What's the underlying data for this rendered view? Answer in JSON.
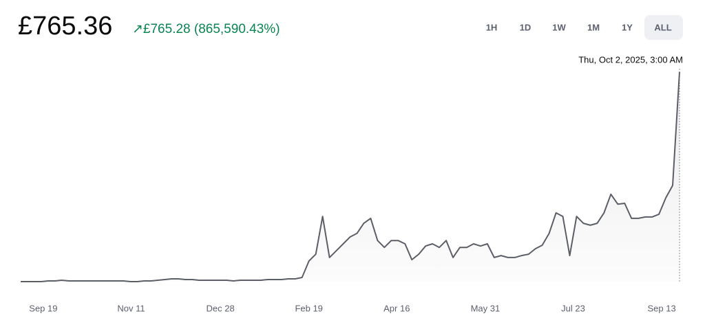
{
  "header": {
    "price": "£765.36",
    "change": "↗£765.28 (865,590.43%)",
    "ranges": [
      "1H",
      "1D",
      "1W",
      "1M",
      "1Y",
      "ALL"
    ],
    "selected_range": "ALL"
  },
  "chart_data": {
    "type": "line",
    "color": "#5b5e66",
    "hover_label": "Thu, Oct 2, 2025, 3:00 AM",
    "xlim": [
      0,
      96
    ],
    "ylim": [
      0,
      800
    ],
    "xticks": [
      {
        "value": 3.3,
        "label": "Sep 19"
      },
      {
        "value": 16.1,
        "label": "Nov 11"
      },
      {
        "value": 29.1,
        "label": "Dec 28"
      },
      {
        "value": 42,
        "label": "Feb 19"
      },
      {
        "value": 54.8,
        "label": "Apr 16"
      },
      {
        "value": 67.7,
        "label": "May 31"
      },
      {
        "value": 80.5,
        "label": "Jul 23"
      },
      {
        "value": 93.4,
        "label": "Sep 13"
      }
    ],
    "values": [
      0.09,
      0.1,
      0.1,
      0.1,
      2.5,
      2.5,
      5,
      2.5,
      2.5,
      2.5,
      2.5,
      2.5,
      2.5,
      2.5,
      2.5,
      2.5,
      0.1,
      0.1,
      2.5,
      2.5,
      5,
      7.5,
      10,
      10,
      7.5,
      7.5,
      5,
      5,
      5,
      5,
      5,
      2.5,
      5,
      5,
      5,
      5,
      7.5,
      7.5,
      7.5,
      10,
      10,
      15,
      75,
      100,
      238,
      88,
      113,
      138,
      163,
      176,
      213,
      231,
      150,
      125,
      150,
      150,
      138,
      80,
      100,
      130,
      138,
      125,
      150,
      88,
      125,
      125,
      138,
      130,
      138,
      88,
      95,
      88,
      88,
      95,
      100,
      120,
      133,
      176,
      251,
      238,
      95,
      238,
      213,
      206,
      213,
      251,
      319,
      283,
      286,
      231,
      231,
      236,
      236,
      246,
      306,
      351,
      765.36
    ]
  }
}
